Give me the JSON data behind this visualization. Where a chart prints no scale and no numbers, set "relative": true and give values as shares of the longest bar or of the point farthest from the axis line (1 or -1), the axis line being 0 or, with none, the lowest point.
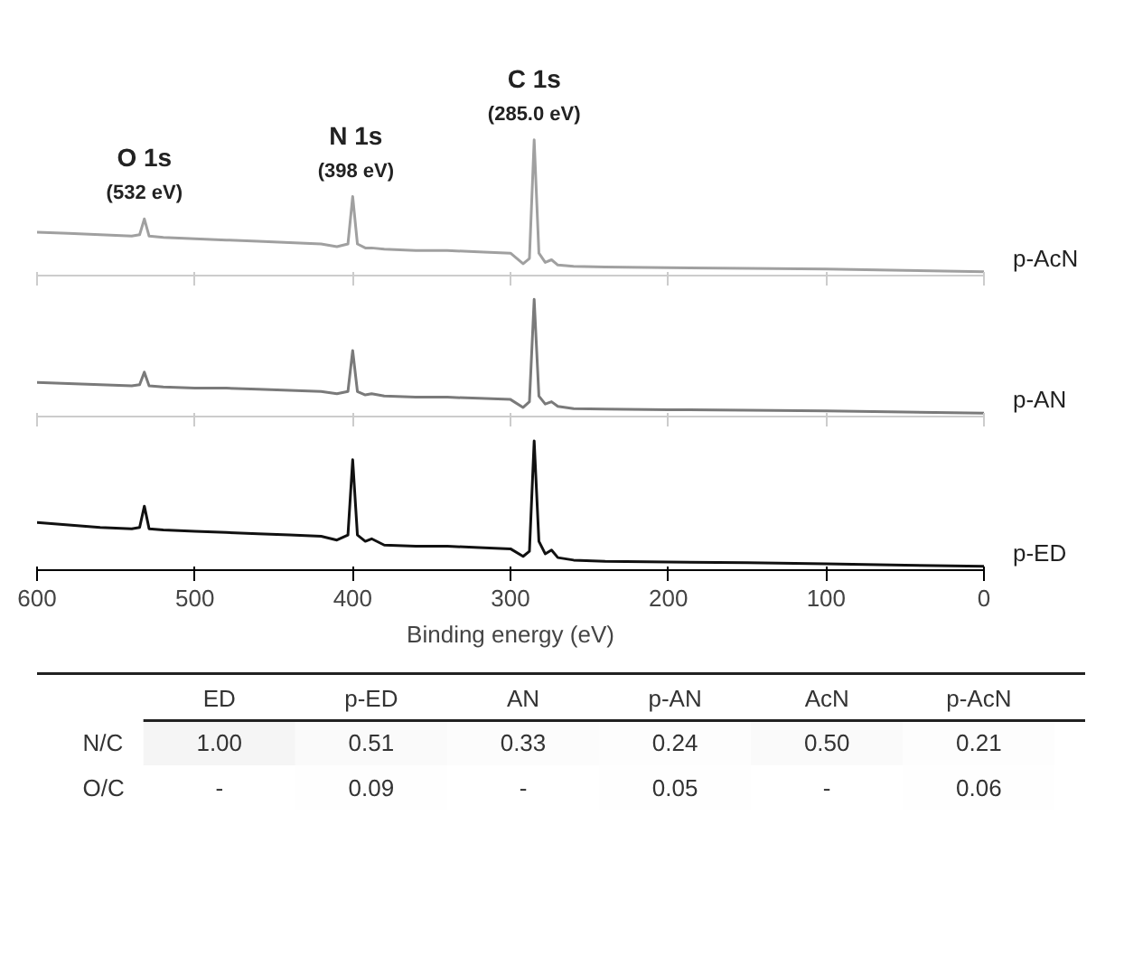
{
  "chart_data": [
    {
      "type": "line",
      "relative": true,
      "xlim": [
        600,
        0
      ],
      "xticks": [
        600,
        500,
        400,
        300,
        200,
        100,
        0
      ],
      "tick_labels": false,
      "x": [
        600,
        580,
        560,
        540,
        535,
        532,
        529,
        520,
        500,
        480,
        460,
        440,
        420,
        410,
        403,
        400,
        397,
        392,
        388,
        380,
        360,
        340,
        320,
        300,
        292,
        288,
        285,
        282,
        278,
        274,
        270,
        260,
        240,
        200,
        150,
        100,
        50,
        0
      ],
      "series": [
        {
          "name": "p-AcN",
          "color": "#a0a0a0",
          "values": [
            0.3,
            0.29,
            0.28,
            0.27,
            0.28,
            0.4,
            0.27,
            0.26,
            0.25,
            0.24,
            0.23,
            0.22,
            0.21,
            0.19,
            0.21,
            0.57,
            0.21,
            0.18,
            0.18,
            0.17,
            0.16,
            0.16,
            0.15,
            0.14,
            0.06,
            0.1,
            1.0,
            0.14,
            0.07,
            0.09,
            0.05,
            0.04,
            0.035,
            0.03,
            0.025,
            0.02,
            0.01,
            0
          ]
        }
      ],
      "annotations": [
        {
          "text": "O 1s",
          "x": 532,
          "y": 0.4
        },
        {
          "text": "(532 eV)",
          "x": 532,
          "y": 0.4
        },
        {
          "text": "N 1s",
          "x": 398,
          "y": 0.57
        },
        {
          "text": "(398 eV)",
          "x": 398,
          "y": 0.57
        },
        {
          "text": "C 1s",
          "x": 285,
          "y": 1.0
        },
        {
          "text": "(285.0 eV)",
          "x": 285,
          "y": 1.0
        }
      ]
    },
    {
      "type": "line",
      "relative": true,
      "xlim": [
        600,
        0
      ],
      "xticks": [
        600,
        500,
        400,
        300,
        200,
        100,
        0
      ],
      "tick_labels": false,
      "x": [
        600,
        580,
        560,
        540,
        535,
        532,
        529,
        520,
        500,
        480,
        460,
        440,
        420,
        410,
        403,
        400,
        397,
        392,
        388,
        380,
        360,
        340,
        320,
        300,
        292,
        288,
        285,
        282,
        278,
        274,
        270,
        260,
        240,
        200,
        150,
        100,
        50,
        0
      ],
      "series": [
        {
          "name": "p-AN",
          "color": "#7a7a7a",
          "values": [
            0.27,
            0.26,
            0.25,
            0.24,
            0.25,
            0.36,
            0.24,
            0.23,
            0.22,
            0.22,
            0.21,
            0.2,
            0.19,
            0.17,
            0.19,
            0.55,
            0.19,
            0.16,
            0.17,
            0.15,
            0.14,
            0.14,
            0.13,
            0.12,
            0.05,
            0.1,
            1.0,
            0.15,
            0.08,
            0.1,
            0.06,
            0.04,
            0.035,
            0.03,
            0.025,
            0.02,
            0.01,
            0
          ]
        }
      ]
    },
    {
      "type": "line",
      "relative": true,
      "xlim": [
        600,
        0
      ],
      "xticks": [
        600,
        500,
        400,
        300,
        200,
        100,
        0
      ],
      "tick_labels": "x",
      "xlabel": "Binding energy (eV)",
      "x": [
        600,
        580,
        560,
        540,
        535,
        532,
        529,
        520,
        500,
        480,
        460,
        440,
        420,
        410,
        403,
        400,
        397,
        392,
        388,
        380,
        360,
        340,
        320,
        300,
        292,
        288,
        285,
        282,
        278,
        274,
        270,
        260,
        240,
        200,
        150,
        100,
        50,
        0
      ],
      "series": [
        {
          "name": "p-ED",
          "color": "#111111",
          "values": [
            0.35,
            0.33,
            0.31,
            0.3,
            0.31,
            0.48,
            0.3,
            0.29,
            0.28,
            0.27,
            0.26,
            0.25,
            0.24,
            0.21,
            0.25,
            0.85,
            0.25,
            0.2,
            0.22,
            0.17,
            0.16,
            0.16,
            0.15,
            0.14,
            0.08,
            0.12,
            1.0,
            0.2,
            0.1,
            0.13,
            0.07,
            0.05,
            0.04,
            0.035,
            0.03,
            0.02,
            0.01,
            0
          ]
        }
      ]
    },
    {
      "type": "heatmap",
      "categories": [
        "ED",
        "p-ED",
        "AN",
        "p-AN",
        "AcN",
        "p-AcN"
      ],
      "y_categories": [
        "N/C",
        "O/C"
      ],
      "cells": [
        [
          1.0,
          0.51,
          0.33,
          0.24,
          0.5,
          0.21
        ],
        [
          null,
          0.09,
          null,
          0.05,
          null,
          0.06
        ]
      ],
      "cell_labels": [
        [
          "1.00",
          "0.51",
          "0.33",
          "0.24",
          "0.50",
          "0.21"
        ],
        [
          "-",
          "0.09",
          "-",
          "0.05",
          "-",
          "0.06"
        ]
      ]
    }
  ]
}
